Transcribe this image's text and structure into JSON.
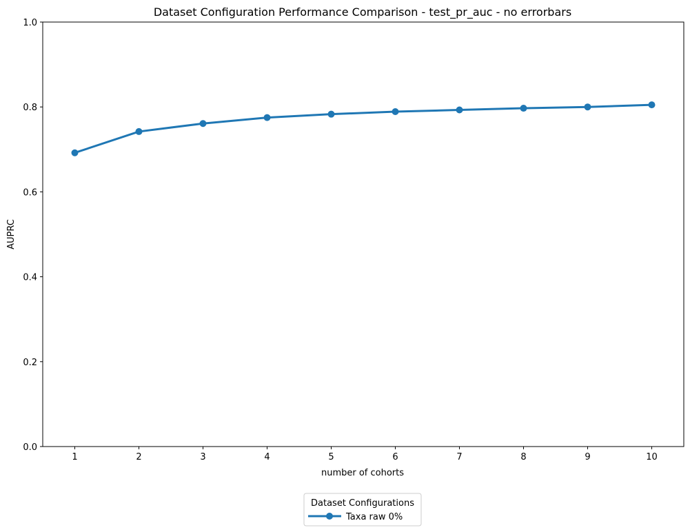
{
  "chart_data": {
    "type": "line",
    "title": "Dataset Configuration Performance Comparison - test_pr_auc - no errorbars",
    "xlabel": "number of cohorts",
    "ylabel": "AUPRC",
    "x": [
      1,
      2,
      3,
      4,
      5,
      6,
      7,
      8,
      9,
      10
    ],
    "xticks": [
      "1",
      "2",
      "3",
      "4",
      "5",
      "6",
      "7",
      "8",
      "9",
      "10"
    ],
    "yticks": [
      "0.0",
      "0.2",
      "0.4",
      "0.6",
      "0.8",
      "1.0"
    ],
    "ylim": [
      0,
      1
    ],
    "xlim": [
      0.5,
      10.5
    ],
    "grid": false,
    "legend": {
      "title": "Dataset Configurations",
      "placement": "below-center",
      "entries": [
        "Taxa raw 0%"
      ]
    },
    "series": [
      {
        "name": "Taxa raw 0%",
        "color": "#1f77b4",
        "marker": "circle",
        "values": [
          0.692,
          0.742,
          0.761,
          0.775,
          0.783,
          0.789,
          0.793,
          0.797,
          0.8,
          0.805
        ]
      }
    ]
  }
}
